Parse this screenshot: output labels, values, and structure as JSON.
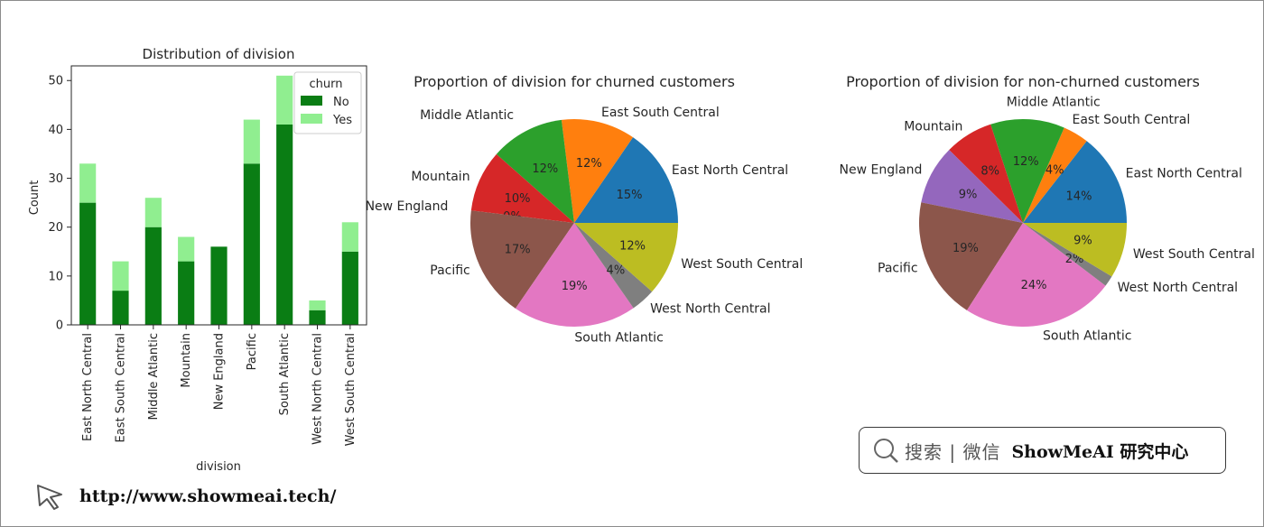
{
  "bar_chart": {
    "title": "Distribution of division",
    "xlabel": "division",
    "ylabel": "Count",
    "legend_title": "churn",
    "yticks": [
      "0",
      "10",
      "20",
      "30",
      "40",
      "50"
    ]
  },
  "pie_churned": {
    "title": "Proportion of division for churned customers"
  },
  "pie_nonchurned": {
    "title": "Proportion of division for non-churned customers"
  },
  "brand": {
    "search_text": "搜索 | 微信",
    "name": "ShowMeAI 研究中心"
  },
  "footer": {
    "url": "http://www.showmeai.tech/"
  },
  "colors": {
    "no": "#0a7d14",
    "yes": "#90ee90",
    "slices": [
      "#1f77b4",
      "#ff7f0e",
      "#2ca02c",
      "#d62728",
      "#9467bd",
      "#8c564b",
      "#e377c2",
      "#7f7f7f",
      "#bcbd22"
    ]
  },
  "chart_data": [
    {
      "type": "bar",
      "stacked": true,
      "title": "Distribution of division",
      "xlabel": "division",
      "ylabel": "Count",
      "ylim": [
        0,
        53
      ],
      "legend_title": "churn",
      "legend_position": "top-right",
      "categories": [
        "East North Central",
        "East South Central",
        "Middle Atlantic",
        "Mountain",
        "New England",
        "Pacific",
        "South Atlantic",
        "West North Central",
        "West South Central"
      ],
      "series": [
        {
          "name": "No",
          "values": [
            25,
            7,
            20,
            13,
            16,
            33,
            41,
            3,
            15
          ]
        },
        {
          "name": "Yes",
          "values": [
            8,
            6,
            6,
            5,
            0,
            9,
            10,
            2,
            6
          ]
        }
      ]
    },
    {
      "type": "pie",
      "title": "Proportion of division for churned customers",
      "labels": [
        "East North Central",
        "East South Central",
        "Middle Atlantic",
        "Mountain",
        "New England",
        "Pacific",
        "South Atlantic",
        "West North Central",
        "West South Central"
      ],
      "values": [
        15.4,
        11.5,
        11.5,
        9.6,
        0,
        17.3,
        19.2,
        3.8,
        11.5
      ],
      "pct_labels": [
        "15%",
        "12%",
        "12%",
        "10%",
        "0%",
        "17%",
        "19%",
        "4%",
        "12%"
      ]
    },
    {
      "type": "pie",
      "title": "Proportion of division for non-churned customers",
      "labels": [
        "East North Central",
        "East South Central",
        "Middle Atlantic",
        "Mountain",
        "New England",
        "Pacific",
        "South Atlantic",
        "West North Central",
        "West South Central"
      ],
      "values": [
        14.4,
        4.0,
        11.5,
        7.5,
        9.2,
        19.0,
        23.6,
        1.7,
        8.6
      ],
      "pct_labels": [
        "14%",
        "4%",
        "12%",
        "8%",
        "9%",
        "19%",
        "24%",
        "2%",
        "9%"
      ]
    }
  ]
}
